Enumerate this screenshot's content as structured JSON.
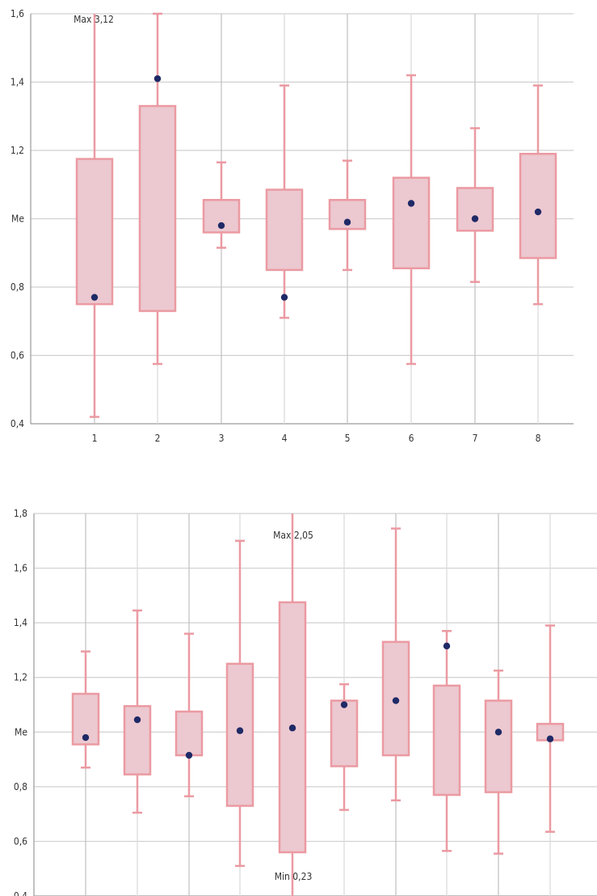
{
  "chart_data": [
    {
      "type": "box",
      "categories": [
        "1",
        "2",
        "3",
        "4",
        "5",
        "6",
        "7",
        "8"
      ],
      "y_ticks": [
        "0,4",
        "0,6",
        "0,8",
        "Me",
        "1,2",
        "1,4",
        "1,6"
      ],
      "ylim": [
        0.4,
        1.6
      ],
      "grid": true,
      "annotations": [
        {
          "text": "Max 3,12"
        }
      ],
      "series": [
        {
          "category": "1",
          "min": 0.42,
          "q1": 0.75,
          "q3": 1.175,
          "max": 3.12,
          "point": 0.77
        },
        {
          "category": "2",
          "min": 0.575,
          "q1": 0.73,
          "q3": 1.33,
          "max": 1.6,
          "point": 1.41
        },
        {
          "category": "3",
          "min": 0.915,
          "q1": 0.96,
          "q3": 1.055,
          "max": 1.165,
          "point": 0.98
        },
        {
          "category": "4",
          "min": 0.71,
          "q1": 0.85,
          "q3": 1.085,
          "max": 1.39,
          "point": 0.77
        },
        {
          "category": "5",
          "min": 0.85,
          "q1": 0.97,
          "q3": 1.055,
          "max": 1.17,
          "point": 0.99
        },
        {
          "category": "6",
          "min": 0.575,
          "q1": 0.855,
          "q3": 1.12,
          "max": 1.42,
          "point": 1.045
        },
        {
          "category": "7",
          "min": 0.815,
          "q1": 0.965,
          "q3": 1.09,
          "max": 1.265,
          "point": 1.0
        },
        {
          "category": "8",
          "min": 0.75,
          "q1": 0.885,
          "q3": 1.19,
          "max": 1.39,
          "point": 1.02
        }
      ]
    },
    {
      "type": "box",
      "categories": [
        "",
        "",
        "",
        "",
        "",
        "",
        "",
        "",
        "",
        ""
      ],
      "y_ticks": [
        "0,4",
        "0,6",
        "0,8",
        "Me",
        "1,2",
        "1,4",
        "1,6",
        "1,8"
      ],
      "ylim": [
        0.4,
        1.8
      ],
      "grid": true,
      "annotations": [
        {
          "text": "Max 2,05"
        },
        {
          "text": "Min 0,23"
        }
      ],
      "series": [
        {
          "min": 0.87,
          "q1": 0.955,
          "q3": 1.14,
          "max": 1.295,
          "point": 0.98
        },
        {
          "min": 0.705,
          "q1": 0.845,
          "q3": 1.095,
          "max": 1.445,
          "point": 1.045
        },
        {
          "min": 0.765,
          "q1": 0.915,
          "q3": 1.075,
          "max": 1.36,
          "point": 0.915
        },
        {
          "min": 0.51,
          "q1": 0.73,
          "q3": 1.25,
          "max": 1.7,
          "point": 1.005
        },
        {
          "min": 0.23,
          "q1": 0.56,
          "q3": 1.475,
          "max": 2.05,
          "point": 1.015
        },
        {
          "min": 0.715,
          "q1": 0.875,
          "q3": 1.115,
          "max": 1.175,
          "point": 1.1
        },
        {
          "min": 0.75,
          "q1": 0.915,
          "q3": 1.33,
          "max": 1.745,
          "point": 1.115
        },
        {
          "min": 0.565,
          "q1": 0.77,
          "q3": 1.17,
          "max": 1.37,
          "point": 1.315
        },
        {
          "min": 0.555,
          "q1": 0.78,
          "q3": 1.115,
          "max": 1.225,
          "point": 1.0
        },
        {
          "min": 0.635,
          "q1": 0.97,
          "q3": 1.03,
          "max": 1.39,
          "point": 0.975
        }
      ]
    }
  ],
  "colors": {
    "box_fill": "#ecc8d0",
    "box_stroke": "#eb9aa2",
    "whisker": "#eb9aa2",
    "point": "#1f2a66",
    "grid": "#d0d0d0",
    "axis": "#9a9a9a"
  }
}
